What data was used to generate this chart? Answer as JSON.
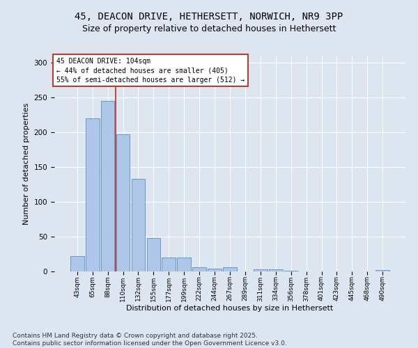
{
  "title_line1": "45, DEACON DRIVE, HETHERSETT, NORWICH, NR9 3PP",
  "title_line2": "Size of property relative to detached houses in Hethersett",
  "xlabel": "Distribution of detached houses by size in Hethersett",
  "ylabel": "Number of detached properties",
  "categories": [
    "43sqm",
    "65sqm",
    "88sqm",
    "110sqm",
    "132sqm",
    "155sqm",
    "177sqm",
    "199sqm",
    "222sqm",
    "244sqm",
    "267sqm",
    "289sqm",
    "311sqm",
    "334sqm",
    "356sqm",
    "378sqm",
    "401sqm",
    "423sqm",
    "445sqm",
    "468sqm",
    "490sqm"
  ],
  "values": [
    22,
    220,
    245,
    197,
    133,
    48,
    20,
    20,
    6,
    4,
    6,
    0,
    3,
    3,
    1,
    0,
    0,
    0,
    0,
    0,
    2
  ],
  "bar_color": "#aec6e8",
  "bar_edge_color": "#5a8fc0",
  "vline_x": 2.5,
  "vline_color": "#c0392b",
  "annotation_box_text": "45 DEACON DRIVE: 104sqm\n← 44% of detached houses are smaller (405)\n55% of semi-detached houses are larger (512) →",
  "ylim": [
    0,
    310
  ],
  "yticks": [
    0,
    50,
    100,
    150,
    200,
    250,
    300
  ],
  "background_color": "#dde5f0",
  "plot_background": "#dde5f0",
  "footer_text": "Contains HM Land Registry data © Crown copyright and database right 2025.\nContains public sector information licensed under the Open Government Licence v3.0.",
  "title_fontsize": 10,
  "subtitle_fontsize": 9,
  "xlabel_fontsize": 8,
  "ylabel_fontsize": 8,
  "annotation_fontsize": 7,
  "footer_fontsize": 6.5
}
